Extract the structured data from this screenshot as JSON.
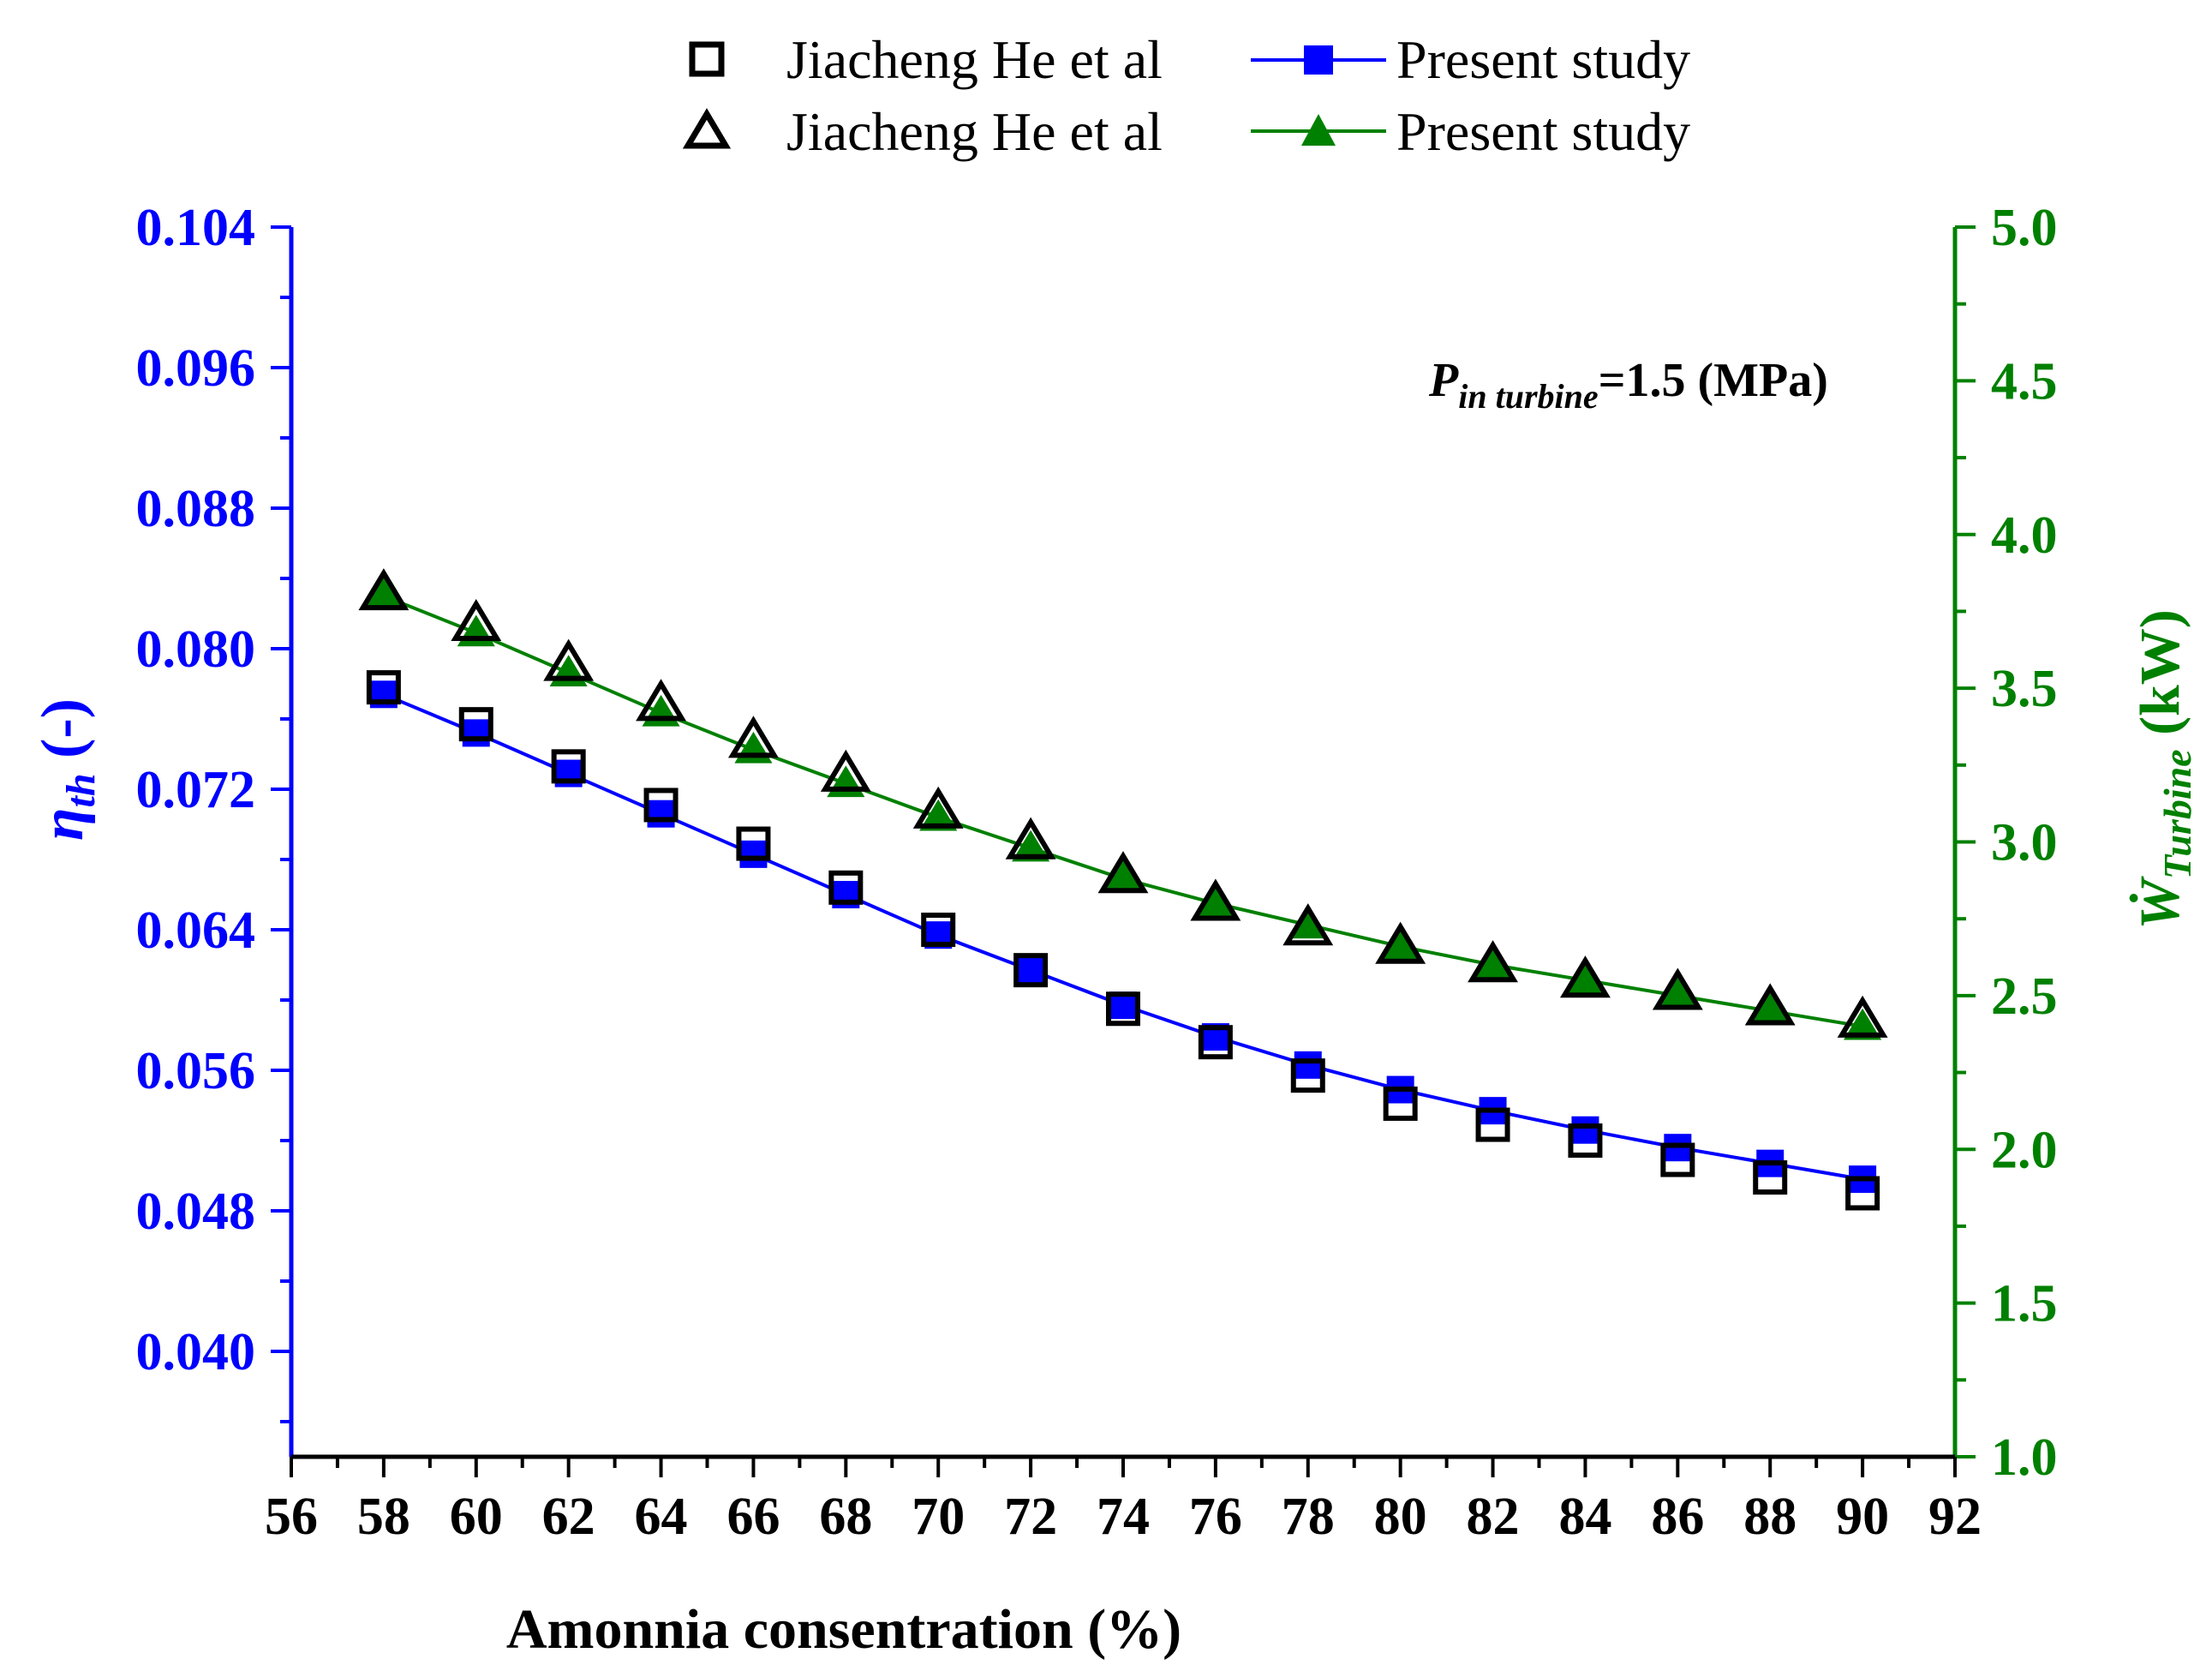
{
  "chart_data": {
    "type": "line",
    "title": "",
    "xlabel": "Amonnia consentration (%)",
    "xlim": [
      56,
      92
    ],
    "x_ticks": [
      "56",
      "58",
      "60",
      "62",
      "64",
      "66",
      "68",
      "70",
      "72",
      "74",
      "76",
      "78",
      "80",
      "82",
      "84",
      "86",
      "88",
      "90",
      "92"
    ],
    "x": [
      58,
      60,
      62,
      64,
      66,
      68,
      70,
      72,
      74,
      76,
      78,
      80,
      82,
      84,
      86,
      88,
      90
    ],
    "ylabel_left": {
      "symbol": "η",
      "sub": "th",
      "suffix": " (-)"
    },
    "ylim_left": [
      0.034,
      0.104
    ],
    "y_ticks_left": [
      "0.040",
      "0.048",
      "0.056",
      "0.064",
      "0.072",
      "0.080",
      "0.088",
      "0.096",
      "0.104"
    ],
    "ylabel_right": {
      "symbol": "Ẇ",
      "sub": "Turbine",
      "suffix": " (kW)"
    },
    "ylim_right": [
      1.0,
      5.0
    ],
    "y_ticks_right": [
      "1.0",
      "1.5",
      "2.0",
      "2.5",
      "3.0",
      "3.5",
      "4.0",
      "4.5",
      "5.0"
    ],
    "annotation": {
      "symbol": "P",
      "sub": "in turbine",
      "text": "=1.5 (MPa)"
    },
    "colors": {
      "left_axis": "#0000ff",
      "right_axis": "#008000",
      "blue_series": "#0000ff",
      "green_series": "#008000",
      "ref_marker": "#000000"
    },
    "series": [
      {
        "name": "Jiacheng He et al",
        "axis": "left",
        "style": "open-square",
        "values": [
          0.0778,
          0.0757,
          0.0733,
          0.0711,
          0.0689,
          0.0664,
          0.064,
          0.0617,
          0.0595,
          0.0576,
          0.0557,
          0.0541,
          0.0529,
          0.052,
          0.0509,
          0.0499,
          0.049
        ]
      },
      {
        "name": "Present study",
        "axis": "left",
        "style": "blue-line-filled-square",
        "values": [
          0.0774,
          0.0752,
          0.0729,
          0.0706,
          0.0683,
          0.066,
          0.0637,
          0.0617,
          0.0597,
          0.0579,
          0.0563,
          0.0549,
          0.0537,
          0.0526,
          0.0516,
          0.0507,
          0.0498
        ]
      },
      {
        "name": "Jiacheng He et al",
        "axis": "right",
        "style": "open-triangle",
        "values": [
          3.81,
          3.71,
          3.58,
          3.45,
          3.33,
          3.22,
          3.1,
          3.0,
          2.89,
          2.8,
          2.72,
          2.66,
          2.6,
          2.55,
          2.51,
          2.46,
          2.42
        ]
      },
      {
        "name": "Present study",
        "axis": "right",
        "style": "green-line-filled-triangle",
        "values": [
          3.8,
          3.68,
          3.55,
          3.42,
          3.3,
          3.19,
          3.08,
          2.98,
          2.88,
          2.8,
          2.73,
          2.66,
          2.6,
          2.55,
          2.5,
          2.45,
          2.4
        ]
      }
    ]
  }
}
